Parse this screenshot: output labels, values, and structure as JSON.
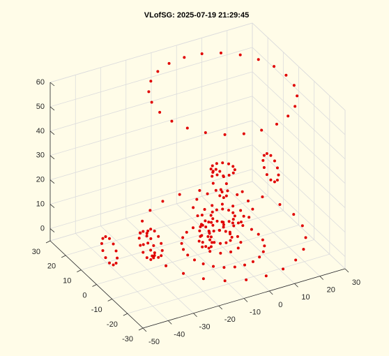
{
  "chart_data": {
    "type": "scatter3d",
    "title": "VLofSG: 2025-07-19 21:29:45",
    "color": "#e00000",
    "grid": true,
    "xlim": [
      -50,
      30
    ],
    "ylim": [
      -30,
      30
    ],
    "zlim": [
      -5,
      60
    ],
    "xticks": [
      -50,
      -40,
      -30,
      -20,
      -10,
      0,
      10,
      20,
      30
    ],
    "yticks": [
      -30,
      -20,
      -10,
      0,
      10,
      20,
      30
    ],
    "zticks": [
      0,
      10,
      20,
      30,
      40,
      50,
      60
    ],
    "x": [
      25,
      24.2,
      21.7,
      17.7,
      12.5,
      6.5,
      0,
      -6.5,
      -12.5,
      -17.7,
      -21.7,
      -24.2,
      -25,
      -24.2,
      -21.7,
      -17.7,
      -12.5,
      -6.5,
      0,
      6.5,
      12.5,
      17.7,
      21.7,
      24.2,
      28,
      27,
      24.2,
      19.8,
      14,
      7.3,
      0,
      -7.3,
      -14,
      -19.8,
      -24.2,
      -27,
      -28,
      -27,
      -24.2,
      -19.8,
      -14,
      -7.3,
      0,
      7.3,
      14,
      19.8,
      24.2,
      27,
      11,
      10.5,
      9.1,
      6.9,
      4,
      0.6,
      -3,
      -6.6,
      -10,
      -12.9,
      -15.1,
      -16.5,
      -17,
      -16.5,
      -15.1,
      -12.9,
      -10,
      -6.6,
      -3,
      0.6,
      4,
      6.9,
      9.1,
      10.5,
      7,
      6.1,
      3.5,
      0,
      -3.5,
      -6.1,
      -7,
      -6.1,
      -3.5,
      0,
      3.5,
      6.1,
      4,
      3.5,
      2,
      0,
      -2,
      -3.5,
      -4,
      -3.5,
      -2,
      0,
      2,
      3.5,
      10,
      8.7,
      5,
      0,
      -5,
      -8.7,
      -10,
      -8.7,
      -5,
      0,
      5,
      8.7,
      4,
      3.1,
      0.5,
      -3,
      -6.5,
      -9.1,
      -10,
      -9.1,
      -6.5,
      -3,
      0.5,
      3.1,
      1,
      0.5,
      -1,
      -3,
      -5,
      -6.5,
      -7,
      -6.5,
      -5,
      -3,
      -1,
      0.5,
      4,
      3.5,
      2,
      0,
      -2,
      -3.5,
      -4,
      -3.5,
      -2,
      0,
      2,
      3.5,
      0,
      0,
      0,
      0,
      0,
      0,
      0,
      0,
      0,
      0,
      0,
      0,
      22,
      22,
      22,
      22,
      22,
      22,
      22,
      22,
      22,
      22,
      22,
      22,
      -40,
      -40,
      -40,
      -40,
      -40,
      -40,
      -40,
      -40,
      -40,
      -40,
      -40,
      -40,
      -27,
      -27,
      -27,
      -27,
      -27,
      -27,
      -27,
      -27,
      -27,
      -27,
      -27,
      -27,
      -24,
      -24,
      -24,
      -24,
      -24,
      -24,
      -24,
      -24,
      -24,
      -24,
      -24,
      -24,
      -8,
      -8,
      -8,
      -8,
      -8,
      -8,
      -8,
      -8,
      -8,
      -8,
      -8,
      -8
    ],
    "y": [
      0,
      6.5,
      12.5,
      17.7,
      21.7,
      24.2,
      25,
      24.2,
      21.7,
      17.7,
      12.5,
      6.5,
      0,
      -6.5,
      -12.5,
      -17.7,
      -21.7,
      -24.2,
      -25,
      -24.2,
      -21.7,
      -17.7,
      -12.5,
      -6.5,
      0,
      7.3,
      14,
      19.8,
      24.2,
      27,
      28,
      27,
      24.2,
      19.8,
      14,
      7.3,
      0,
      -7.3,
      -14,
      -19.8,
      -24.2,
      -27,
      -28,
      -27,
      -24.2,
      -19.8,
      -14,
      -7.3,
      -5,
      -1.4,
      2,
      4.9,
      7.1,
      8.5,
      9,
      8.5,
      7.1,
      4.9,
      2,
      -1.4,
      -5,
      -8.6,
      -12,
      -14.9,
      -17.1,
      -18.5,
      -19,
      -18.5,
      -17.1,
      -14.9,
      -12,
      -8.6,
      0,
      3.5,
      6.1,
      7,
      6.1,
      3.5,
      0,
      -3.5,
      -6.1,
      -7,
      -6.1,
      -3.5,
      0,
      2,
      3.5,
      4,
      3.5,
      2,
      0,
      -2,
      -3.5,
      -4,
      -3.5,
      -2,
      0,
      5,
      8.7,
      10,
      8.7,
      5,
      0,
      -5,
      -8.7,
      -10,
      -8.7,
      -5,
      -3,
      0.5,
      3.1,
      4,
      3.1,
      0.5,
      -3,
      -6.5,
      -9.1,
      -10,
      -9.1,
      -6.5,
      -3,
      -1,
      0.5,
      1,
      0.5,
      -1,
      -3,
      -5,
      -6.5,
      -7,
      -6.5,
      -5,
      0,
      2,
      3.5,
      4,
      3.5,
      2,
      0,
      -2,
      -3.5,
      -4,
      -3.5,
      -2,
      7,
      6.3,
      4.5,
      2,
      -0.5,
      -2.3,
      -3,
      -2.3,
      -0.5,
      2,
      4.5,
      6.3,
      10,
      9.3,
      7.5,
      5,
      2.5,
      0.7,
      0,
      0.7,
      2.5,
      5,
      7.5,
      9.3,
      13,
      12.3,
      10.5,
      8,
      5.5,
      3.7,
      3,
      3.7,
      5.5,
      8,
      10.5,
      12.3,
      10,
      9.3,
      7.5,
      5,
      2.5,
      0.7,
      0,
      0.7,
      2.5,
      5,
      7.5,
      9.3,
      10,
      9.3,
      7.5,
      5,
      2.5,
      0.7,
      0,
      0.7,
      2.5,
      5,
      7.5,
      9.3,
      2,
      1.5,
      0,
      -2,
      -4,
      -5.5,
      -6,
      -5.5,
      -4,
      -2,
      0,
      1.5
    ],
    "z": [
      58,
      58,
      58,
      58,
      58,
      58,
      58,
      58,
      58,
      58,
      58,
      58,
      58,
      58,
      58,
      58,
      58,
      58,
      58,
      58,
      58,
      58,
      58,
      58,
      0,
      0,
      0,
      0,
      0,
      0,
      0,
      0,
      0,
      0,
      0,
      0,
      0,
      0,
      0,
      0,
      0,
      0,
      0,
      0,
      0,
      0,
      0,
      0,
      0,
      0,
      0,
      0,
      0,
      0,
      0,
      0,
      0,
      0,
      0,
      0,
      0,
      0,
      0,
      0,
      0,
      0,
      0,
      0,
      0,
      0,
      0,
      0,
      8,
      8,
      8,
      8,
      8,
      8,
      8,
      8,
      8,
      8,
      8,
      8,
      8,
      8,
      8,
      8,
      8,
      8,
      8,
      8,
      8,
      8,
      8,
      8,
      11,
      11,
      11,
      11,
      11,
      11,
      11,
      11,
      11,
      11,
      11,
      11,
      0,
      0,
      0,
      0,
      0,
      0,
      0,
      0,
      0,
      0,
      0,
      0,
      2,
      2,
      2,
      2,
      2,
      2,
      2,
      2,
      2,
      2,
      2,
      2,
      27,
      27,
      27,
      27,
      27,
      27,
      27,
      27,
      27,
      27,
      27,
      27,
      20,
      22.5,
      24.3,
      25,
      24.3,
      22.5,
      20,
      17.5,
      15.7,
      15,
      15.7,
      17.5,
      18,
      20.5,
      22.3,
      23,
      22.3,
      20.5,
      18,
      15.5,
      13.7,
      13,
      13.7,
      15.5,
      1,
      3.5,
      5.3,
      6,
      5.3,
      3.5,
      1,
      -1.5,
      -3.3,
      -4,
      -3.3,
      -1.5,
      1,
      3.5,
      5.3,
      6,
      5.3,
      3.5,
      1,
      -1.5,
      -3.3,
      -4,
      -3.3,
      -1.5,
      1,
      3.5,
      5.3,
      6,
      5.3,
      3.5,
      1,
      -1.5,
      -3.3,
      -4,
      -3.3,
      -1.5,
      3,
      5,
      6.5,
      7,
      6.5,
      5,
      3,
      1,
      -0.5,
      -1,
      -0.5,
      1
    ]
  }
}
